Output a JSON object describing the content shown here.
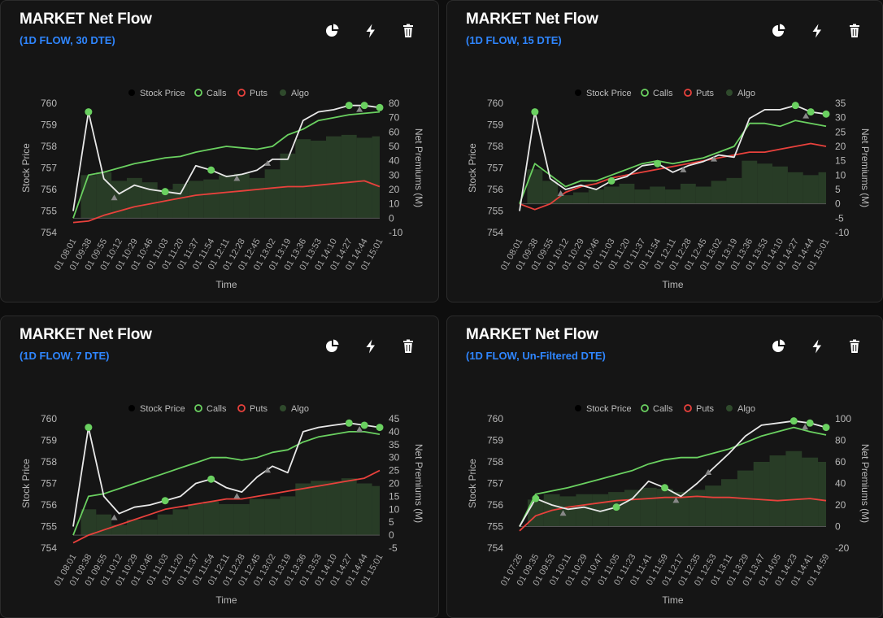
{
  "colors": {
    "stock": "#e8e8e8",
    "calls": "#6ad060",
    "puts": "#e8413c",
    "algo": "#2f4a2c",
    "accent": "#2f86ff"
  },
  "icons": [
    "pie-chart-icon",
    "bolt-icon",
    "trash-icon"
  ],
  "legend": {
    "stock": "Stock Price",
    "calls": "Calls",
    "puts": "Puts",
    "algo": "Algo"
  },
  "panels": [
    {
      "title": "MARKET Net Flow",
      "subtitle": "(1D FLOW, 30 DTE)"
    },
    {
      "title": "MARKET Net Flow",
      "subtitle": "(1D FLOW, 15 DTE)"
    },
    {
      "title": "MARKET Net Flow",
      "subtitle": "(1D FLOW, 7 DTE)"
    },
    {
      "title": "MARKET Net Flow",
      "subtitle": "(1D FLOW, Un-Filtered DTE)"
    }
  ],
  "chart_data": [
    {
      "type": "line",
      "xlabel": "Time",
      "ylabel": "Stock Price",
      "y2label": "Net Premiums (M)",
      "ylim": [
        754,
        760
      ],
      "y2lim": [
        -10,
        80
      ],
      "yticks": [
        760,
        759,
        758,
        757,
        756,
        755,
        754
      ],
      "y2ticks": [
        80,
        70,
        60,
        50,
        40,
        30,
        20,
        10,
        0,
        -10
      ],
      "x_tick_labels": [
        "01 08:01",
        "01 09:38",
        "01 09:55",
        "01 10:12",
        "01 10:29",
        "01 10:46",
        "01 11:03",
        "01 11:20",
        "01 11:37",
        "01 11:54",
        "01 12:11",
        "01 12:28",
        "01 12:45",
        "01 13:02",
        "01 13:19",
        "01 13:36",
        "01 13:53",
        "01 14:10",
        "01 14:27",
        "01 14:44",
        "01 15:01"
      ],
      "series": [
        {
          "name": "Stock Price",
          "axis": "left",
          "values": [
            755.0,
            759.6,
            756.5,
            755.8,
            756.2,
            756.0,
            755.9,
            755.8,
            757.1,
            756.9,
            756.6,
            756.7,
            756.9,
            757.4,
            757.4,
            759.2,
            759.6,
            759.7,
            759.9,
            759.9,
            759.8
          ]
        },
        {
          "name": "Calls",
          "axis": "right",
          "values": [
            0,
            30,
            32,
            35,
            38,
            40,
            42,
            43,
            46,
            48,
            50,
            49,
            48,
            50,
            58,
            62,
            68,
            70,
            72,
            73,
            74
          ]
        },
        {
          "name": "Puts",
          "axis": "right",
          "values": [
            -3,
            -2,
            2,
            5,
            8,
            10,
            12,
            14,
            16,
            17,
            18,
            19,
            20,
            21,
            22,
            22,
            23,
            24,
            25,
            26,
            22
          ]
        },
        {
          "name": "Algo",
          "axis": "right",
          "values": [
            0,
            30,
            32,
            26,
            28,
            25,
            20,
            24,
            26,
            27,
            30,
            31,
            28,
            34,
            45,
            55,
            54,
            57,
            58,
            56,
            57
          ]
        }
      ]
    },
    {
      "type": "line",
      "xlabel": "Time",
      "ylabel": "Stock Price",
      "y2label": "Net Premiums (M)",
      "ylim": [
        754,
        760
      ],
      "y2lim": [
        -10,
        35
      ],
      "yticks": [
        760,
        759,
        758,
        757,
        756,
        755,
        754
      ],
      "y2ticks": [
        35,
        30,
        25,
        20,
        15,
        10,
        5,
        0,
        -5,
        -10
      ],
      "x_tick_labels": [
        "01 08:01",
        "01 09:38",
        "01 09:55",
        "01 10:12",
        "01 10:29",
        "01 10:46",
        "01 11:03",
        "01 11:20",
        "01 11:37",
        "01 11:54",
        "01 12:11",
        "01 12:28",
        "01 12:45",
        "01 13:02",
        "01 13:19",
        "01 13:36",
        "01 13:53",
        "01 14:10",
        "01 14:27",
        "01 14:44",
        "01 15:01"
      ],
      "series": [
        {
          "name": "Stock Price",
          "axis": "left",
          "values": [
            755.0,
            759.6,
            756.5,
            756.0,
            756.2,
            756.0,
            756.4,
            756.6,
            757.1,
            757.2,
            756.8,
            757.1,
            757.3,
            757.6,
            757.5,
            759.3,
            759.7,
            759.7,
            759.9,
            759.6,
            759.5
          ]
        },
        {
          "name": "Calls",
          "axis": "right",
          "values": [
            0,
            14,
            10,
            6,
            8,
            8,
            10,
            12,
            14,
            15,
            14,
            15,
            16,
            18,
            20,
            28,
            28,
            27,
            29,
            28,
            27
          ]
        },
        {
          "name": "Puts",
          "axis": "right",
          "values": [
            0,
            -2,
            0,
            4,
            6,
            7,
            9,
            10,
            11,
            12,
            13,
            14,
            15,
            16,
            17,
            18,
            18,
            19,
            20,
            21,
            20
          ]
        },
        {
          "name": "Algo",
          "axis": "right",
          "values": [
            0,
            12,
            8,
            3,
            4,
            5,
            6,
            7,
            5,
            6,
            5,
            7,
            6,
            8,
            9,
            15,
            14,
            13,
            11,
            10,
            11
          ]
        }
      ]
    },
    {
      "type": "line",
      "xlabel": "Time",
      "ylabel": "Stock Price",
      "y2label": "Net Premiums (M)",
      "ylim": [
        754,
        760
      ],
      "y2lim": [
        -5,
        45
      ],
      "yticks": [
        760,
        759,
        758,
        757,
        756,
        755,
        754
      ],
      "y2ticks": [
        45,
        40,
        35,
        30,
        25,
        20,
        15,
        10,
        5,
        0,
        -5
      ],
      "x_tick_labels": [
        "01 08:01",
        "01 09:38",
        "01 09:55",
        "01 10:12",
        "01 10:29",
        "01 10:46",
        "01 11:03",
        "01 11:20",
        "01 11:37",
        "01 11:54",
        "01 12:11",
        "01 12:28",
        "01 12:45",
        "01 13:02",
        "01 13:19",
        "01 13:36",
        "01 13:53",
        "01 14:10",
        "01 14:27",
        "01 14:44",
        "01 15:01"
      ],
      "series": [
        {
          "name": "Stock Price",
          "axis": "left",
          "values": [
            755.0,
            759.6,
            756.4,
            755.6,
            755.9,
            756.0,
            756.2,
            756.4,
            757.0,
            757.2,
            756.8,
            756.6,
            757.3,
            757.8,
            757.5,
            759.4,
            759.6,
            759.7,
            759.8,
            759.7,
            759.6
          ]
        },
        {
          "name": "Calls",
          "axis": "right",
          "values": [
            0,
            15,
            16,
            18,
            20,
            22,
            24,
            26,
            28,
            30,
            30,
            29,
            30,
            32,
            33,
            36,
            38,
            39,
            40,
            40,
            39
          ]
        },
        {
          "name": "Puts",
          "axis": "right",
          "values": [
            -3,
            0,
            2,
            4,
            6,
            8,
            10,
            11,
            12,
            13,
            14,
            14,
            15,
            16,
            17,
            18,
            19,
            20,
            21,
            22,
            25
          ]
        },
        {
          "name": "Algo",
          "axis": "right",
          "values": [
            0,
            10,
            8,
            4,
            6,
            6,
            8,
            10,
            12,
            13,
            12,
            12,
            14,
            14,
            15,
            20,
            21,
            21,
            22,
            20,
            19
          ]
        }
      ]
    },
    {
      "type": "line",
      "xlabel": "Time",
      "ylabel": "Stock Price",
      "y2label": "Net Premiums (M)",
      "ylim": [
        754,
        760
      ],
      "y2lim": [
        -20,
        100
      ],
      "yticks": [
        760,
        759,
        758,
        757,
        756,
        755,
        754
      ],
      "y2ticks": [
        100,
        80,
        60,
        40,
        20,
        0,
        -20
      ],
      "x_tick_labels": [
        "01 07:26",
        "01 09:35",
        "01 09:53",
        "01 10:11",
        "01 10:29",
        "01 10:47",
        "01 11:05",
        "01 11:23",
        "01 11:41",
        "01 11:59",
        "01 12:17",
        "01 12:35",
        "01 12:53",
        "01 13:11",
        "01 13:29",
        "01 13:47",
        "01 14:05",
        "01 14:23",
        "01 14:41",
        "01 14:59"
      ],
      "series": [
        {
          "name": "Stock Price",
          "axis": "left",
          "values": [
            755.0,
            756.3,
            756.0,
            755.8,
            755.9,
            755.7,
            755.9,
            756.3,
            757.1,
            756.8,
            756.4,
            757.0,
            757.7,
            758.4,
            759.2,
            759.7,
            759.8,
            759.9,
            759.8,
            759.6
          ]
        },
        {
          "name": "Calls",
          "axis": "right",
          "values": [
            0,
            30,
            33,
            36,
            40,
            44,
            48,
            52,
            58,
            62,
            64,
            64,
            68,
            72,
            78,
            84,
            88,
            92,
            88,
            85
          ]
        },
        {
          "name": "Puts",
          "axis": "right",
          "values": [
            -4,
            10,
            15,
            18,
            20,
            22,
            24,
            25,
            26,
            27,
            27,
            28,
            27,
            27,
            26,
            25,
            24,
            25,
            26,
            24
          ]
        },
        {
          "name": "Algo",
          "axis": "right",
          "values": [
            0,
            25,
            30,
            28,
            30,
            30,
            32,
            34,
            36,
            35,
            32,
            34,
            38,
            44,
            52,
            60,
            66,
            70,
            64,
            60
          ]
        }
      ]
    }
  ]
}
